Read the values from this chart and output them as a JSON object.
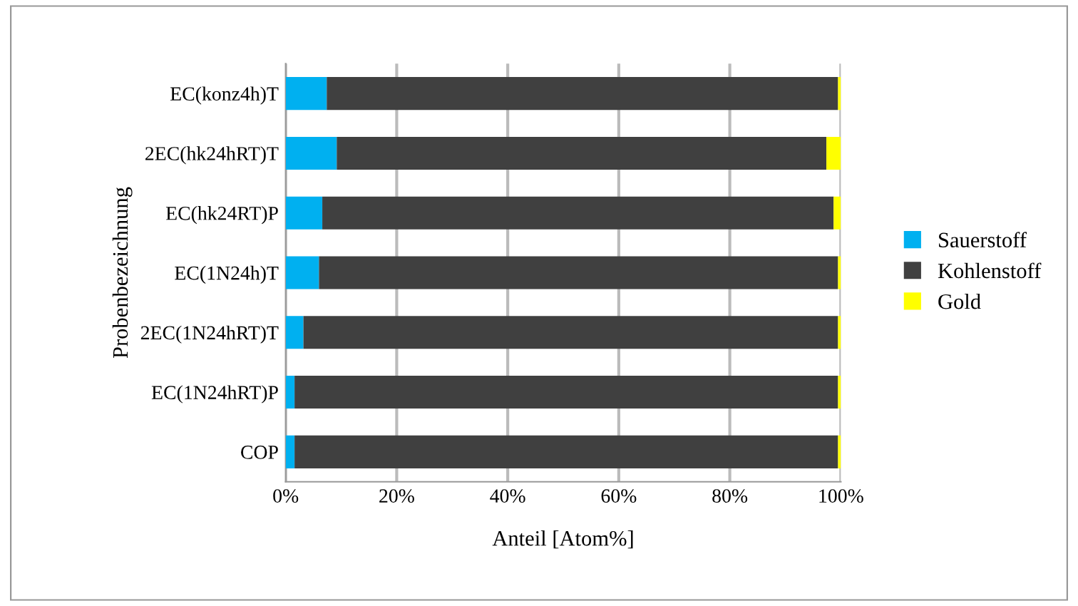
{
  "chart_data": {
    "type": "bar",
    "orientation": "horizontal",
    "stacked": true,
    "xlabel": "Anteil [Atom%]",
    "ylabel": "Probenbezeichnung",
    "categories": [
      "EC(konz4h)T",
      "2EC(hk24hRT)T",
      "EC(hk24RT)P",
      "EC(1N24h)T",
      "2EC(1N24hRT)T",
      "EC(1N24hRT)P",
      "COP"
    ],
    "series": [
      {
        "name": "Sauerstoff",
        "color": "#00b0f0",
        "values": [
          7.4,
          9.2,
          6.6,
          6.0,
          3.2,
          1.6,
          1.6
        ]
      },
      {
        "name": "Kohlenstoff",
        "color": "#404040",
        "values": [
          92.1,
          88.2,
          92.1,
          93.5,
          96.3,
          97.9,
          97.9
        ]
      },
      {
        "name": "Gold",
        "color": "#ffff00",
        "values": [
          0.5,
          2.6,
          1.3,
          0.5,
          0.5,
          0.5,
          0.5
        ]
      }
    ],
    "xlim": [
      0,
      100
    ],
    "xticks": [
      {
        "value": 0,
        "label": "0%"
      },
      {
        "value": 20,
        "label": "20%"
      },
      {
        "value": 40,
        "label": "40%"
      },
      {
        "value": 60,
        "label": "60%"
      },
      {
        "value": 80,
        "label": "80%"
      },
      {
        "value": 100,
        "label": "100%"
      }
    ],
    "grid": "x",
    "legend": "right"
  }
}
